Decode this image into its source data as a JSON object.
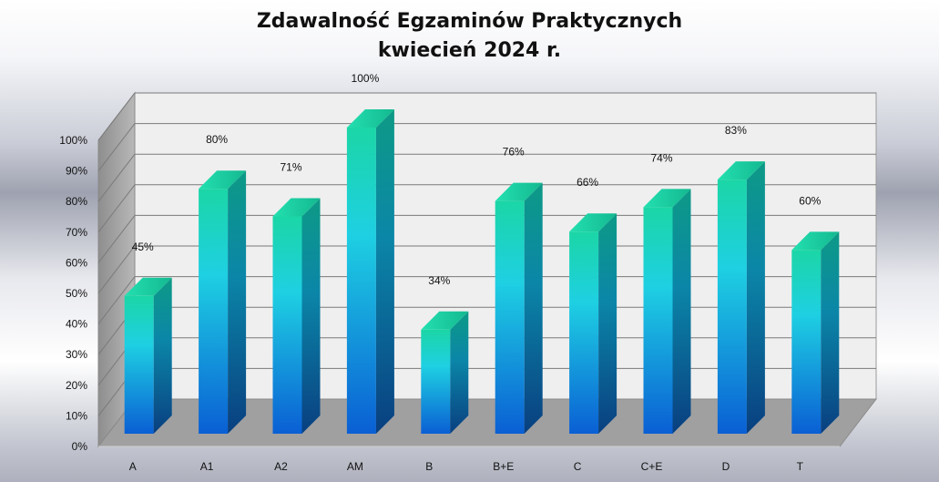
{
  "chart_data": {
    "type": "bar",
    "title": "Zdawalność Egzaminów Praktycznych",
    "subtitle": "kwiecień 2024 r.",
    "categories": [
      "A",
      "A1",
      "A2",
      "AM",
      "B",
      "B+E",
      "C",
      "C+E",
      "D",
      "T"
    ],
    "values": [
      45,
      80,
      71,
      100,
      34,
      76,
      66,
      74,
      83,
      60
    ],
    "data_labels": [
      "45%",
      "80%",
      "71%",
      "100%",
      "34%",
      "76%",
      "66%",
      "74%",
      "83%",
      "60%"
    ],
    "y_ticks": [
      "0%",
      "10%",
      "20%",
      "30%",
      "40%",
      "50%",
      "60%",
      "70%",
      "80%",
      "90%",
      "100%"
    ],
    "ylim": [
      0,
      100
    ],
    "xlabel": "",
    "ylabel": "",
    "grid": true,
    "legend": "none",
    "style": "3d-column",
    "colors": {
      "bar_top": "#1bd6a6",
      "bar_mid": "#1ec8e0",
      "bar_bottom": "#0a63d8",
      "bar_side": "#0a5c8c",
      "wall": "#efefef",
      "floor": "#9c9c9c",
      "grid": "#7a7a7a"
    }
  }
}
